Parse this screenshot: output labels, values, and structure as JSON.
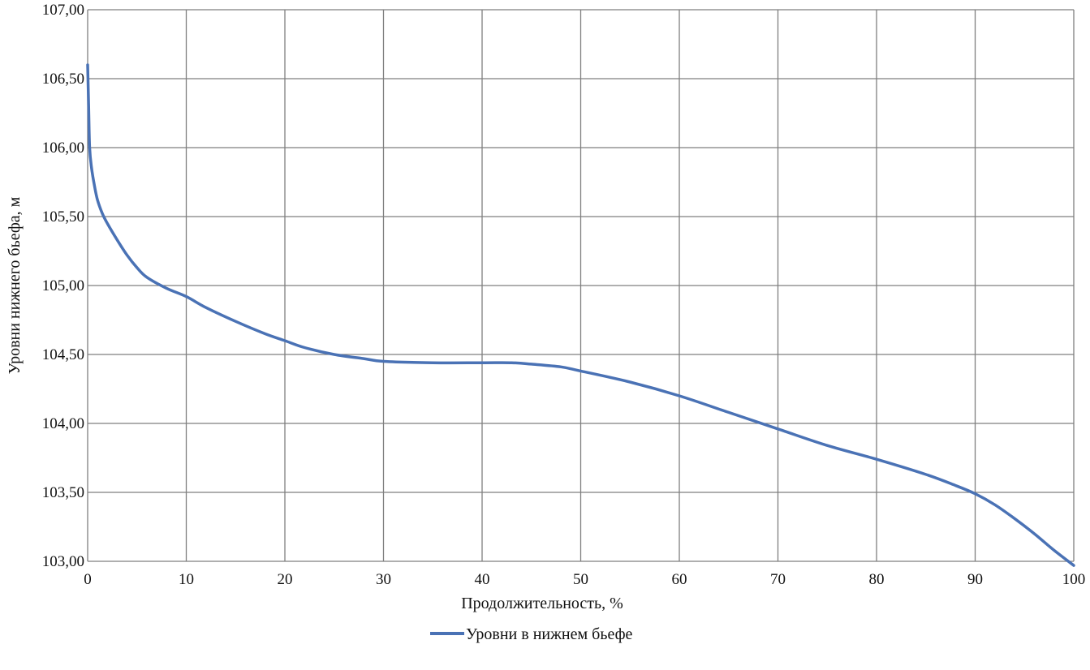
{
  "chart_data": {
    "type": "line",
    "title": "",
    "xlabel": "Продолжительность, %",
    "ylabel": "Уровни нижнего бьефа, м",
    "xlim": [
      0,
      100
    ],
    "ylim": [
      103,
      107
    ],
    "x_ticks": [
      0,
      10,
      20,
      30,
      40,
      50,
      60,
      70,
      80,
      90,
      100
    ],
    "x_tick_labels": [
      "0",
      "10",
      "20",
      "30",
      "40",
      "50",
      "60",
      "70",
      "80",
      "90",
      "100"
    ],
    "y_ticks": [
      103,
      103.5,
      104,
      104.5,
      105,
      105.5,
      106,
      106.5,
      107
    ],
    "y_tick_labels": [
      "103,00",
      "103,50",
      "104,00",
      "104,50",
      "105,00",
      "105,50",
      "106,00",
      "106,50",
      "107,00"
    ],
    "grid": true,
    "legend_position": "bottom-center",
    "series": [
      {
        "name": "Уровни в нижнем бьефе",
        "color": "#4a72b5",
        "x": [
          0,
          0.1,
          0.2,
          0.4,
          0.7,
          1,
          1.5,
          2,
          3,
          4,
          5,
          6,
          8,
          10,
          12,
          15,
          18,
          20,
          22,
          25,
          28,
          30,
          35,
          40,
          43,
          45,
          48,
          50,
          55,
          60,
          65,
          70,
          75,
          80,
          85,
          88,
          90,
          92,
          94,
          96,
          98,
          100
        ],
        "values": [
          106.6,
          106.3,
          106.0,
          105.85,
          105.72,
          105.62,
          105.52,
          105.45,
          105.33,
          105.22,
          105.13,
          105.06,
          104.98,
          104.92,
          104.84,
          104.74,
          104.65,
          104.6,
          104.55,
          104.5,
          104.47,
          104.45,
          104.44,
          104.44,
          104.44,
          104.43,
          104.41,
          104.38,
          104.3,
          104.2,
          104.08,
          103.96,
          103.84,
          103.74,
          103.63,
          103.55,
          103.49,
          103.41,
          103.31,
          103.2,
          103.08,
          102.97
        ]
      }
    ]
  }
}
